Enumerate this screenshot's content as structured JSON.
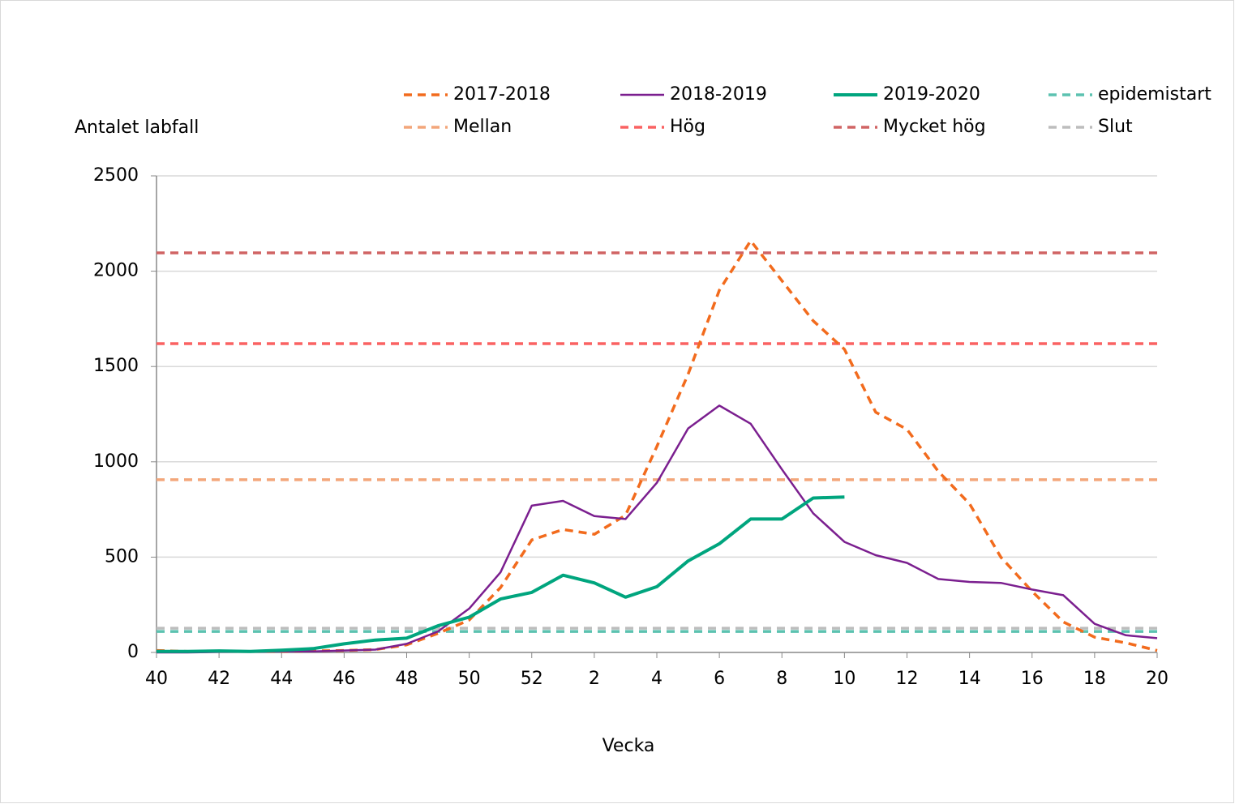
{
  "chart_data": {
    "type": "line",
    "y_label": "Antalet labfall",
    "x_label": "Vecka",
    "categories": [
      "40",
      null,
      "42",
      null,
      "44",
      null,
      "46",
      null,
      "48",
      null,
      "50",
      null,
      "52",
      null,
      "2",
      null,
      "4",
      null,
      "6",
      null,
      "8",
      null,
      "10",
      null,
      "12",
      null,
      "14",
      null,
      "16",
      null,
      "18",
      null,
      "20"
    ],
    "ylim": [
      0,
      2500
    ],
    "yticks": [
      0,
      500,
      1000,
      1500,
      2000,
      2500
    ],
    "grid": true,
    "series": [
      {
        "name": "2017-2018",
        "color": "#f26b1d",
        "style": "dashed",
        "values": [
          10,
          5,
          5,
          5,
          5,
          8,
          10,
          15,
          40,
          100,
          170,
          340,
          590,
          645,
          620,
          720,
          1080,
          1460,
          1900,
          2160,
          1950,
          1740,
          1590,
          1260,
          1170,
          950,
          780,
          500,
          320,
          160,
          80,
          50,
          10
        ]
      },
      {
        "name": "2018-2019",
        "color": "#7b1f8f",
        "style": "solid",
        "values": [
          0,
          0,
          3,
          3,
          5,
          5,
          10,
          15,
          45,
          110,
          230,
          420,
          770,
          795,
          715,
          700,
          890,
          1175,
          1295,
          1200,
          960,
          730,
          580,
          510,
          470,
          385,
          370,
          365,
          330,
          300,
          150,
          90,
          75
        ]
      },
      {
        "name": "2019-2020",
        "color": "#00a57e",
        "style": "bold",
        "values": [
          5,
          5,
          8,
          5,
          12,
          20,
          45,
          65,
          75,
          140,
          185,
          280,
          315,
          405,
          365,
          290,
          345,
          480,
          570,
          700,
          700,
          810,
          815,
          null,
          null,
          null,
          null,
          null,
          null,
          null,
          null,
          null,
          null
        ]
      },
      {
        "name": "epidemistart",
        "color": "#5cc2b0",
        "style": "dashed",
        "value": 110
      },
      {
        "name": "Mellan",
        "color": "#f3a67a",
        "style": "dashed",
        "value": 906
      },
      {
        "name": "Hög",
        "color": "#fa6262",
        "style": "dashed",
        "value": 1620
      },
      {
        "name": "Mycket hög",
        "color": "#d06464",
        "style": "dashed",
        "value": 2096
      },
      {
        "name": "Slut",
        "color": "#bdbdbd",
        "style": "dashed",
        "value": 127
      }
    ]
  }
}
